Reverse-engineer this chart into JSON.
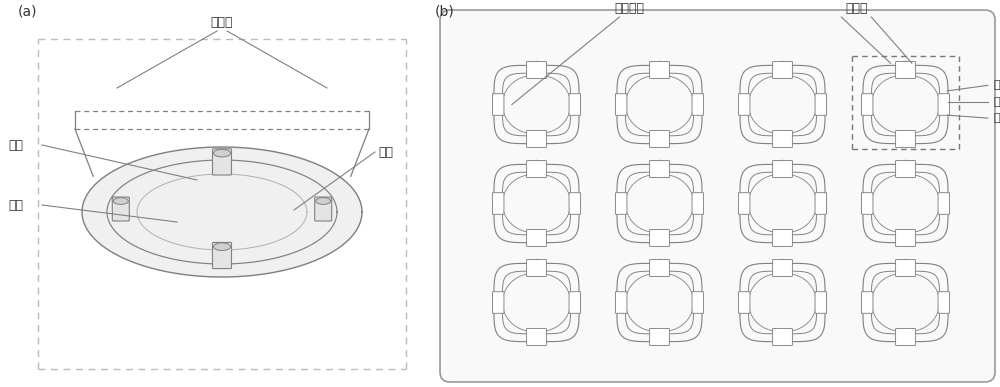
{
  "bg_color": "#ffffff",
  "line_color": "#b0b0b0",
  "dark_line_color": "#808080",
  "label_color": "#333333",
  "panel_a_label": "(a)",
  "panel_b_label": "(b)",
  "label_weizihuan": "微柱环",
  "label_quanxue": "全血",
  "label_xuejiang": "血浆",
  "label_weizhui": "微柱",
  "label_rouXingDiZuo": "柔性底座",
  "font_size": 9,
  "font_size_label": 8
}
